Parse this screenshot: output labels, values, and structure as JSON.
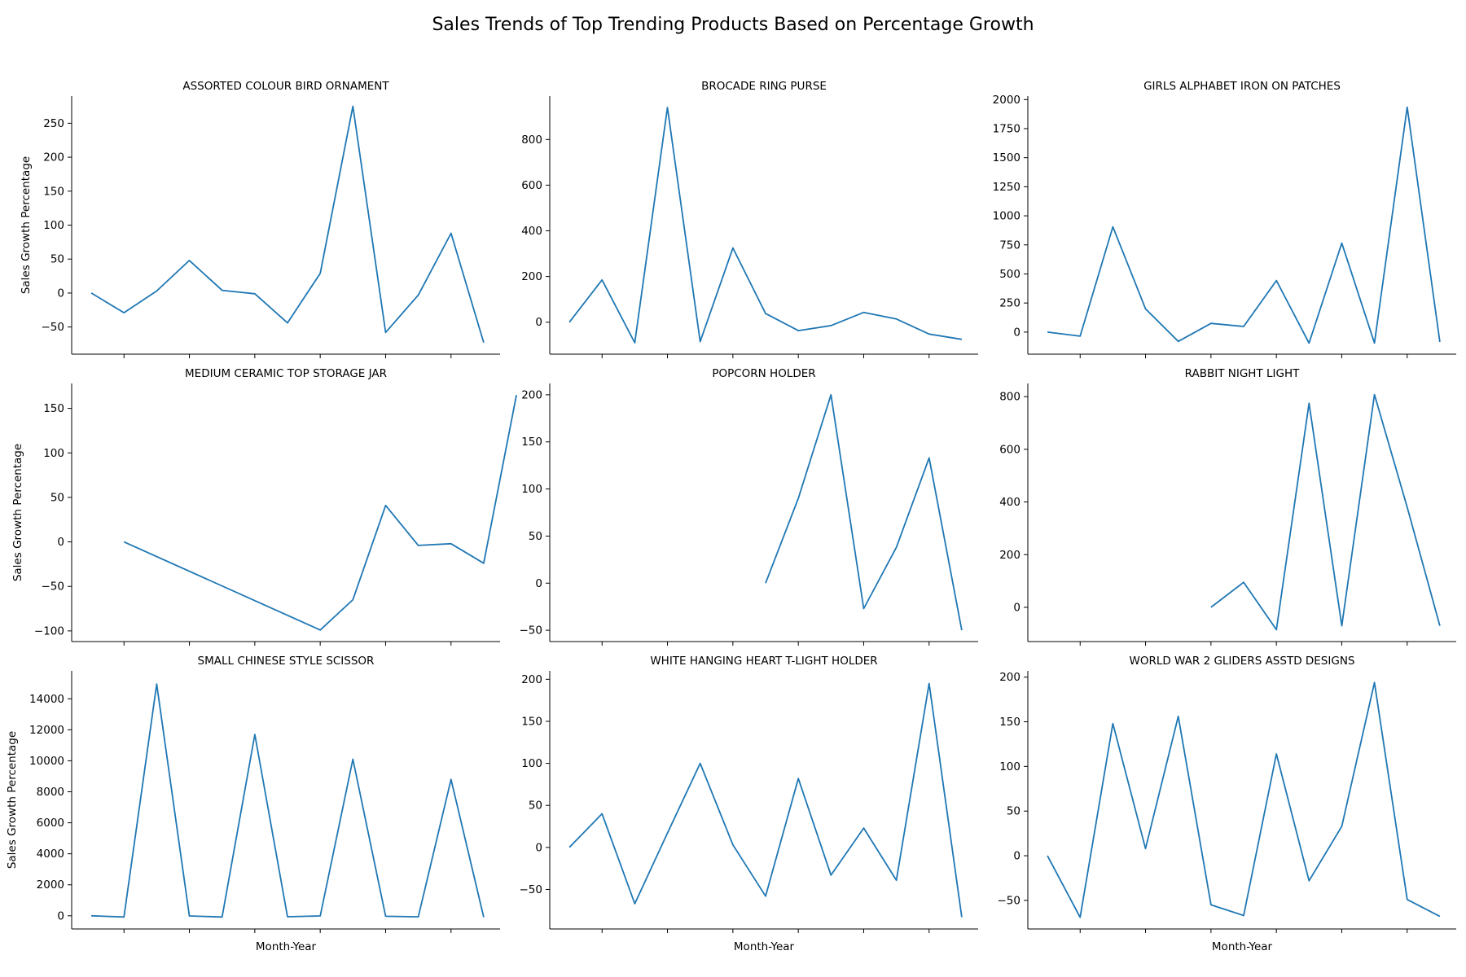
{
  "figure_title": "Sales Trends of Top Trending Products Based on Percentage Growth",
  "shared_labels": {
    "ylabel": "Sales Growth Percentage",
    "xlabel": "Month-Year"
  },
  "colors": {
    "line": "#1f77b4",
    "axis": "#000000"
  },
  "chart_data": [
    {
      "type": "line",
      "title": "ASSORTED COLOUR BIRD ORNAMENT",
      "ylabel": "Sales Growth Percentage",
      "xlabel": "",
      "ylim": [
        -90,
        290
      ],
      "yticks": [
        -50,
        0,
        50,
        100,
        150,
        200,
        250
      ],
      "x": [
        0,
        1,
        2,
        3,
        4,
        5,
        6,
        7,
        8,
        9,
        10,
        11,
        12
      ],
      "values": [
        0,
        -29,
        3,
        48,
        4,
        -1,
        -44,
        29,
        275,
        -58,
        -3,
        88,
        -73
      ]
    },
    {
      "type": "line",
      "title": "BROCADE RING PURSE",
      "ylabel": "",
      "xlabel": "",
      "ylim": [
        -140,
        990
      ],
      "yticks": [
        0,
        200,
        400,
        600,
        800
      ],
      "x": [
        0,
        1,
        2,
        3,
        4,
        5,
        6,
        7,
        8,
        9,
        10,
        11,
        12
      ],
      "values": [
        0,
        185,
        -90,
        940,
        -85,
        325,
        38,
        -37,
        -15,
        43,
        14,
        -52,
        -75
      ]
    },
    {
      "type": "line",
      "title": "GIRLS ALPHABET IRON ON PATCHES",
      "ylabel": "",
      "xlabel": "",
      "ylim": [
        -190,
        2030
      ],
      "yticks": [
        0,
        250,
        500,
        750,
        1000,
        1250,
        1500,
        1750,
        2000
      ],
      "x": [
        0,
        1,
        2,
        3,
        4,
        5,
        6,
        7,
        8,
        9,
        10,
        11,
        12
      ],
      "values": [
        0,
        -35,
        905,
        200,
        -80,
        75,
        48,
        443,
        -95,
        765,
        -95,
        1935,
        -85
      ]
    },
    {
      "type": "line",
      "title": "MEDIUM CERAMIC TOP STORAGE JAR",
      "ylabel": "Sales Growth Percentage",
      "xlabel": "",
      "ylim": [
        -112,
        178
      ],
      "yticks": [
        -100,
        -50,
        0,
        50,
        100,
        150
      ],
      "x": [
        1,
        7,
        8,
        9,
        10,
        11,
        12,
        13
      ],
      "values": [
        0,
        -99,
        -65,
        41,
        -4,
        -2,
        -24,
        165
      ]
    },
    {
      "type": "line",
      "title": "POPCORN HOLDER",
      "ylabel": "",
      "xlabel": "",
      "ylim": [
        -62,
        212
      ],
      "yticks": [
        -50,
        0,
        50,
        100,
        150,
        200
      ],
      "x": [
        6,
        7,
        8,
        9,
        10,
        11,
        12
      ],
      "values": [
        0,
        90,
        200,
        -27,
        38,
        133,
        -50
      ]
    },
    {
      "type": "line",
      "title": "RABBIT NIGHT LIGHT",
      "ylabel": "",
      "xlabel": "",
      "ylim": [
        -130,
        850
      ],
      "yticks": [
        0,
        200,
        400,
        600,
        800
      ],
      "x": [
        5,
        6,
        7,
        8,
        9,
        10,
        11,
        12
      ],
      "values": [
        0,
        95,
        -85,
        775,
        -70,
        808,
        380,
        -70
      ]
    },
    {
      "type": "line",
      "title": "SMALL CHINESE STYLE SCISSOR",
      "ylabel": "Sales Growth Percentage",
      "xlabel": "Month-Year",
      "ylim": [
        -850,
        15800
      ],
      "yticks": [
        0,
        2000,
        4000,
        6000,
        8000,
        10000,
        12000,
        14000
      ],
      "x": [
        0,
        1,
        2,
        3,
        4,
        5,
        6,
        7,
        8,
        9,
        10,
        11,
        12
      ],
      "values": [
        0,
        -80,
        14950,
        -10,
        -80,
        11700,
        -60,
        -10,
        10100,
        -30,
        -70,
        8800,
        -90
      ]
    },
    {
      "type": "line",
      "title": "WHITE HANGING HEART T-LIGHT HOLDER",
      "ylabel": "",
      "xlabel": "Month-Year",
      "ylim": [
        -97,
        210
      ],
      "yticks": [
        -50,
        0,
        50,
        100,
        150,
        200
      ],
      "x": [
        0,
        1,
        2,
        3,
        4,
        5,
        6,
        7,
        8,
        9,
        10,
        11,
        12
      ],
      "values": [
        0,
        40,
        -67,
        17,
        100,
        3,
        -58,
        82,
        -33,
        23,
        -39,
        195,
        -83
      ]
    },
    {
      "type": "line",
      "title": "WORLD WAR 2 GLIDERS ASSTD DESIGNS",
      "ylabel": "",
      "xlabel": "Month-Year",
      "ylim": [
        -82,
        207
      ],
      "yticks": [
        -50,
        0,
        50,
        100,
        150,
        200
      ],
      "x": [
        0,
        1,
        2,
        3,
        4,
        5,
        6,
        7,
        8,
        9,
        10,
        11,
        12
      ],
      "values": [
        0,
        -69,
        148,
        8,
        156,
        -55,
        -67,
        114,
        -28,
        33,
        194,
        -49,
        -68
      ]
    }
  ]
}
